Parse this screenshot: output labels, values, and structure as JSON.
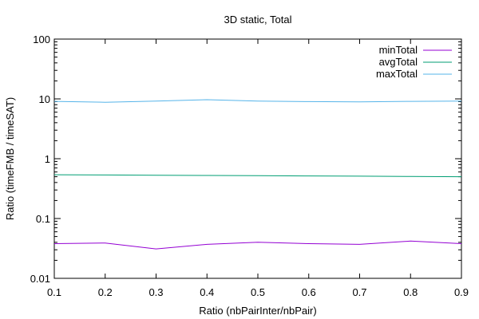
{
  "chart_data": {
    "type": "line",
    "title": "3D static, Total",
    "xlabel": "Ratio (nbPairInter/nbPair)",
    "ylabel": "Ratio (timeFMB / timeSAT)",
    "xlim": [
      0.1,
      0.9
    ],
    "ylim": [
      0.01,
      100
    ],
    "yscale": "log",
    "grid": false,
    "legend_position": "top-right",
    "x_ticks": [
      0.1,
      0.2,
      0.3,
      0.4,
      0.5,
      0.6,
      0.7,
      0.8,
      0.9
    ],
    "x_tick_labels": [
      "0.1",
      "0.2",
      "0.3",
      "0.4",
      "0.5",
      "0.6",
      "0.7",
      "0.8",
      "0.9"
    ],
    "y_ticks": [
      0.01,
      0.1,
      1,
      10,
      100
    ],
    "y_tick_labels": [
      "0.01",
      "0.1",
      "1",
      "10",
      "100"
    ],
    "x": [
      0.1,
      0.2,
      0.3,
      0.4,
      0.5,
      0.6,
      0.7,
      0.8,
      0.9
    ],
    "series": [
      {
        "name": "minTotal",
        "color": "#9400d3",
        "values": [
          0.038,
          0.039,
          0.031,
          0.037,
          0.04,
          0.038,
          0.037,
          0.042,
          0.038
        ]
      },
      {
        "name": "avgTotal",
        "color": "#009e73",
        "values": [
          0.54,
          0.535,
          0.53,
          0.525,
          0.52,
          0.515,
          0.51,
          0.505,
          0.5
        ]
      },
      {
        "name": "maxTotal",
        "color": "#56b4e9",
        "values": [
          9.1,
          8.8,
          9.2,
          9.7,
          9.2,
          9.0,
          8.9,
          9.1,
          9.2
        ]
      }
    ]
  }
}
